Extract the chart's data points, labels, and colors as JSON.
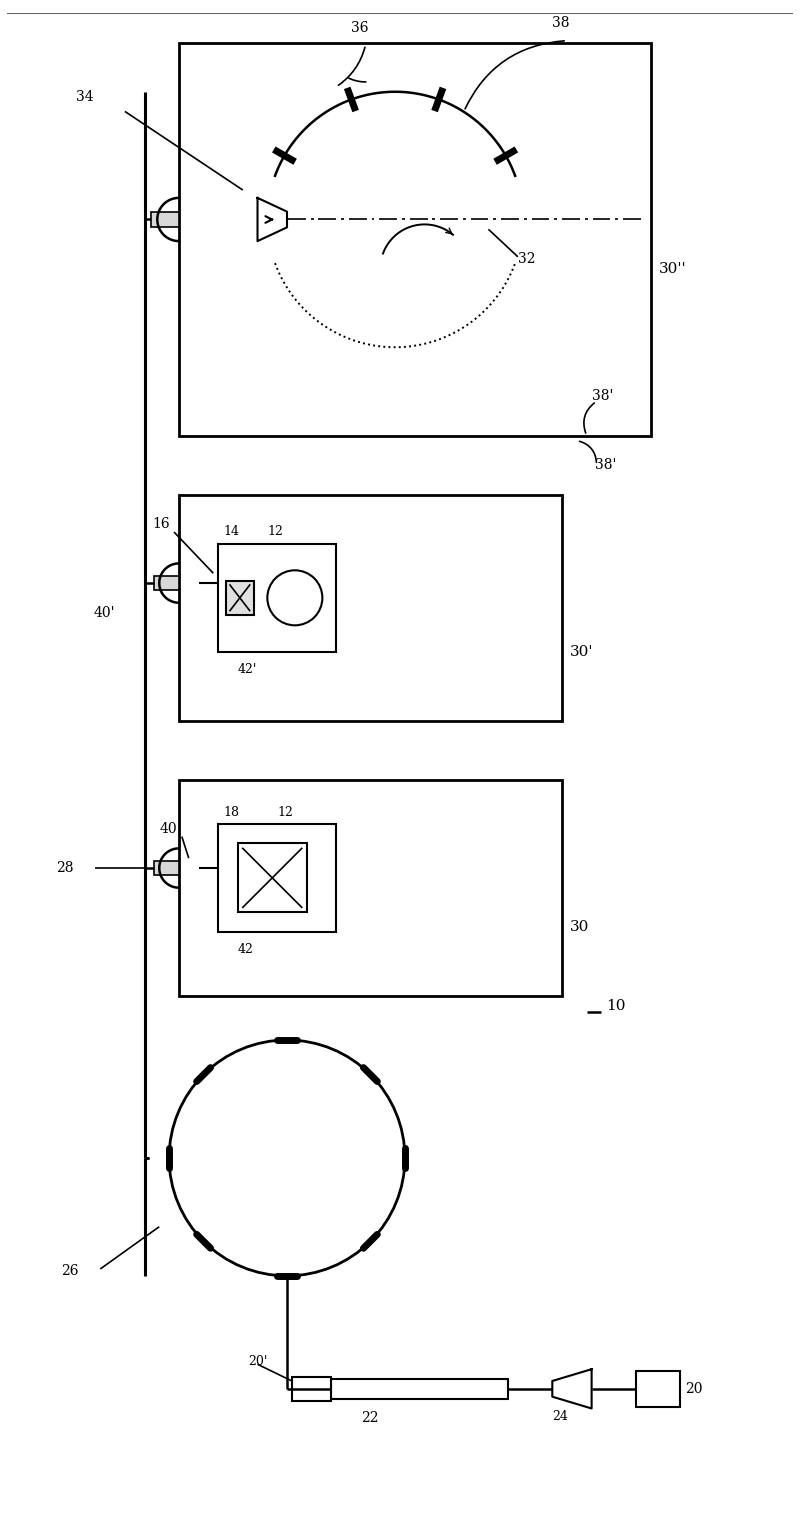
{
  "bg_color": "#ffffff",
  "line_color": "#000000",
  "fig_width": 8.0,
  "fig_height": 15.14
}
